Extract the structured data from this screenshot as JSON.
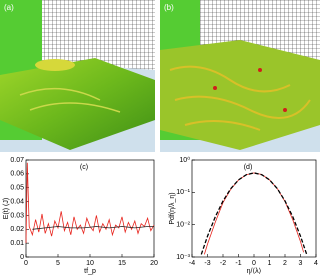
{
  "panels": [
    {
      "label": "(a)"
    },
    {
      "label": "(b)"
    }
  ],
  "chart_data": [
    {
      "type": "line",
      "panel": "(c)",
      "xlabel": "tf_p",
      "ylabel": "E(t) (J)",
      "xlim": [
        0,
        20
      ],
      "ylim": [
        0,
        0.07
      ],
      "xticks": [
        0,
        5,
        10,
        15,
        20
      ],
      "yticks": [
        0,
        0.01,
        0.02,
        0.03,
        0.04,
        0.05,
        0.06,
        0.07
      ],
      "log_y": false,
      "series": [
        {
          "color": "#e8231c",
          "dashed": false,
          "x": [
            0,
            0.2,
            0.5,
            1,
            1.5,
            2,
            2.5,
            3,
            3.5,
            4,
            4.5,
            5,
            5.5,
            6,
            6.5,
            7,
            7.5,
            8,
            8.5,
            9,
            9.5,
            10,
            10.5,
            11,
            11.5,
            12,
            12.5,
            13,
            13.5,
            14,
            14.5,
            15,
            15.5,
            16,
            16.5,
            17,
            17.5,
            18,
            18.5,
            19,
            19.5,
            20
          ],
          "values": [
            0.01,
            0.068,
            0.022,
            0.016,
            0.027,
            0.018,
            0.031,
            0.017,
            0.024,
            0.015,
            0.026,
            0.021,
            0.033,
            0.019,
            0.025,
            0.016,
            0.029,
            0.02,
            0.023,
            0.017,
            0.028,
            0.022,
            0.019,
            0.03,
            0.018,
            0.024,
            0.02,
            0.027,
            0.016,
            0.023,
            0.021,
            0.029,
            0.018,
            0.025,
            0.02,
            0.026,
            0.017,
            0.024,
            0.022,
            0.028,
            0.019,
            0.023
          ]
        },
        {
          "color": "#222222",
          "dashed": false,
          "x": [
            1,
            3,
            5,
            7,
            9,
            11,
            13,
            15,
            17,
            19,
            20
          ],
          "values": [
            0.02,
            0.021,
            0.022,
            0.021,
            0.021,
            0.022,
            0.021,
            0.022,
            0.021,
            0.022,
            0.022
          ]
        }
      ]
    },
    {
      "type": "line",
      "panel": "(d)",
      "xlabel": "η/⟨λ⟩",
      "ylabel": "Pdf(η/λ_η)",
      "xlim": [
        -4,
        4
      ],
      "ylim": [
        0.001,
        1
      ],
      "xticks": [
        -4,
        -3,
        -2,
        -1,
        0,
        1,
        2,
        3,
        4
      ],
      "yticks": [
        {
          "value": 1,
          "label": "10⁰"
        },
        {
          "value": 0.1,
          "label": "10⁻¹"
        },
        {
          "value": 0.01,
          "label": "10⁻²"
        },
        {
          "value": 0.001,
          "label": "10⁻³"
        }
      ],
      "log_y": true,
      "series": [
        {
          "color": "#e8231c",
          "dashed": false,
          "x": [
            -3.2,
            -3,
            -2.5,
            -2,
            -1.5,
            -1,
            -0.5,
            0,
            0.5,
            1,
            1.5,
            2,
            2.5,
            3,
            3.2
          ],
          "values": [
            0.0012,
            0.0025,
            0.012,
            0.048,
            0.125,
            0.24,
            0.35,
            0.4,
            0.355,
            0.245,
            0.13,
            0.052,
            0.014,
            0.003,
            0.0014
          ]
        },
        {
          "color": "#000000",
          "dashed": true,
          "x": [
            -3.4,
            -3,
            -2.5,
            -2,
            -1.5,
            -1,
            -0.5,
            0,
            0.5,
            1,
            1.5,
            2,
            2.5,
            3,
            3.4
          ],
          "values": [
            0.0012,
            0.0044,
            0.0175,
            0.054,
            0.13,
            0.242,
            0.352,
            0.399,
            0.352,
            0.242,
            0.13,
            0.054,
            0.0175,
            0.0044,
            0.0012
          ]
        }
      ]
    }
  ]
}
